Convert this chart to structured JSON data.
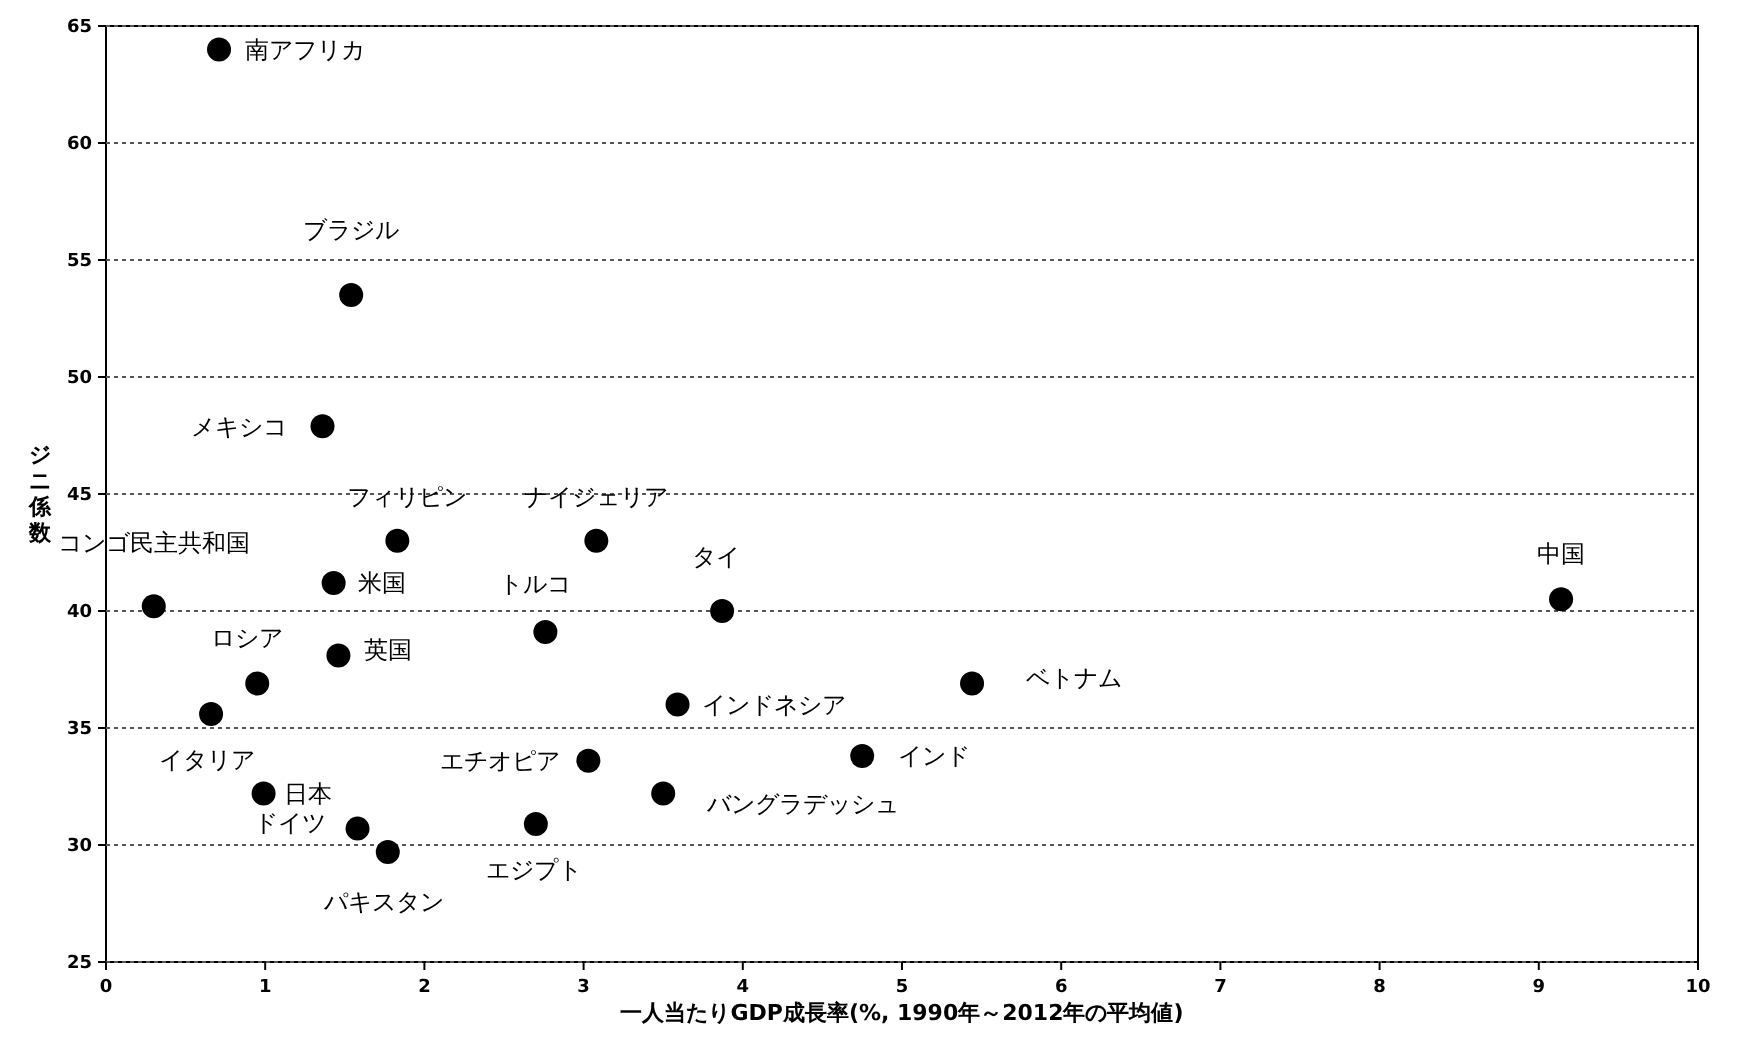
{
  "chart_data": {
    "type": "scatter",
    "xlabel": "一人当たりGDP成長率(%, 1990年～2012年の平均値)",
    "ylabel": "ジニ係数",
    "xlim": [
      0,
      10
    ],
    "xticks": [
      0,
      1,
      2,
      3,
      4,
      5,
      6,
      7,
      8,
      9,
      10
    ],
    "ylim": [
      25,
      65
    ],
    "yticks": [
      25,
      30,
      35,
      40,
      45,
      50,
      55,
      60,
      65
    ],
    "grid": "y",
    "marker": "circle",
    "series": [
      {
        "color": "#000000",
        "x": [
          0.71,
          1.54,
          1.36,
          1.83,
          3.08,
          0.3,
          1.43,
          2.76,
          3.87,
          0.95,
          1.46,
          0.66,
          0.99,
          1.58,
          1.77,
          2.7,
          3.03,
          3.59,
          3.5,
          4.75,
          5.44,
          9.14
        ],
        "values": [
          64.0,
          53.5,
          47.9,
          43.0,
          43.0,
          40.2,
          41.2,
          39.1,
          40.0,
          36.9,
          38.1,
          35.6,
          32.2,
          30.7,
          29.7,
          30.9,
          33.6,
          36.0,
          32.2,
          33.8,
          36.9,
          40.5
        ]
      }
    ],
    "annotations": [
      {
        "text": "南アフリカ",
        "x": 0.71,
        "y": 64.0
      },
      {
        "text": "ブラジル",
        "x": 1.54,
        "y": 53.5
      },
      {
        "text": "メキシコ",
        "x": 1.36,
        "y": 47.9
      },
      {
        "text": "フィリピン",
        "x": 1.83,
        "y": 43.0
      },
      {
        "text": "ナイジェリア",
        "x": 3.08,
        "y": 43.0
      },
      {
        "text": "コンゴ民主共和国",
        "x": 0.3,
        "y": 40.2
      },
      {
        "text": "米国",
        "x": 1.43,
        "y": 41.2
      },
      {
        "text": "トルコ",
        "x": 2.76,
        "y": 39.1
      },
      {
        "text": "タイ",
        "x": 3.87,
        "y": 40.0
      },
      {
        "text": "ロシア",
        "x": 0.95,
        "y": 36.9
      },
      {
        "text": "英国",
        "x": 1.46,
        "y": 38.1
      },
      {
        "text": "イタリア",
        "x": 0.66,
        "y": 35.6
      },
      {
        "text": "日本",
        "x": 0.99,
        "y": 32.2
      },
      {
        "text": "ドイツ",
        "x": 1.58,
        "y": 30.7
      },
      {
        "text": "パキスタン",
        "x": 1.77,
        "y": 29.7
      },
      {
        "text": "エジプト",
        "x": 2.7,
        "y": 30.9
      },
      {
        "text": "エチオピア",
        "x": 3.03,
        "y": 33.6
      },
      {
        "text": "インドネシア",
        "x": 3.59,
        "y": 36.0
      },
      {
        "text": "バングラデッシュ",
        "x": 3.5,
        "y": 32.2
      },
      {
        "text": "インド",
        "x": 4.75,
        "y": 33.8
      },
      {
        "text": "ベトナム",
        "x": 5.44,
        "y": 36.9
      },
      {
        "text": "中国",
        "x": 9.14,
        "y": 40.5
      }
    ]
  }
}
